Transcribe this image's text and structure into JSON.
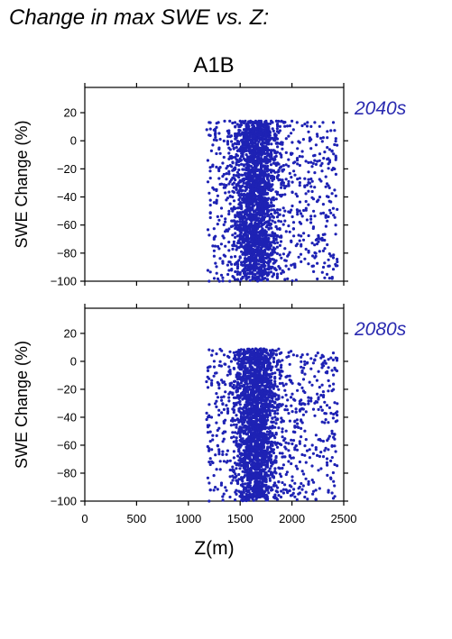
{
  "figure": {
    "title": "Change in max SWE vs. Z:",
    "scenario": "A1B"
  },
  "colors": {
    "points": "#1e22b4",
    "period_label": "#2a2ab0",
    "axis": "#000000"
  },
  "chart_data": [
    {
      "type": "scatter",
      "title": "2040s",
      "xlabel": "",
      "ylabel": "SWE Change (%)",
      "xlim": [
        0,
        2500
      ],
      "ylim": [
        -100,
        38
      ],
      "x_ticks": [
        0,
        500,
        1000,
        1500,
        2000,
        2500
      ],
      "y_ticks": [
        20,
        0,
        -20,
        -40,
        -60,
        -80,
        -100
      ],
      "y_tick_labels": [
        "20",
        "0",
        "−20",
        "−40",
        "−60",
        "−80",
        "−100"
      ],
      "show_x_tick_labels": false,
      "grid": false,
      "series": [
        {
          "color": "#1e22b4",
          "cloud": {
            "x_range": [
              1180,
              2440
            ],
            "y_range": [
              -100,
              14
            ],
            "dense_x": [
              1350,
              1950
            ],
            "peak_x": 1650
          },
          "points": [
            [
              1200,
              13
            ],
            [
              1290,
              13
            ],
            [
              1350,
              14
            ],
            [
              1400,
              14
            ],
            [
              1450,
              13
            ],
            [
              1500,
              14
            ],
            [
              1550,
              14
            ],
            [
              1600,
              14
            ],
            [
              1650,
              14
            ],
            [
              1700,
              14
            ],
            [
              1750,
              14
            ],
            [
              1800,
              14
            ],
            [
              1850,
              14
            ],
            [
              1900,
              14
            ],
            [
              2000,
              14
            ],
            [
              2050,
              13
            ],
            [
              2150,
              13
            ],
            [
              2220,
              13
            ],
            [
              2300,
              13
            ],
            [
              2400,
              13
            ],
            [
              1650,
              -85
            ],
            [
              1800,
              -90
            ],
            [
              2200,
              -82
            ],
            [
              2420,
              -88
            ],
            [
              1200,
              -100
            ],
            [
              1250,
              -98
            ],
            [
              1300,
              -100
            ],
            [
              1400,
              -100
            ],
            [
              1500,
              -100
            ]
          ]
        }
      ]
    },
    {
      "type": "scatter",
      "title": "2080s",
      "xlabel": "Z(m)",
      "ylabel": "SWE Change (%)",
      "xlim": [
        0,
        2500
      ],
      "ylim": [
        -100,
        38
      ],
      "x_ticks": [
        0,
        500,
        1000,
        1500,
        2000,
        2500
      ],
      "x_tick_labels": [
        "0",
        "500",
        "1000",
        "1500",
        "2000",
        "2500"
      ],
      "y_ticks": [
        20,
        0,
        -20,
        -40,
        -60,
        -80,
        -100
      ],
      "y_tick_labels": [
        "20",
        "0",
        "−20",
        "−40",
        "−60",
        "−80",
        "−100"
      ],
      "show_x_tick_labels": true,
      "grid": false,
      "series": [
        {
          "color": "#1e22b4",
          "cloud": {
            "x_range": [
              1180,
              2440
            ],
            "y_range": [
              -100,
              9
            ],
            "dense_x": [
              1350,
              1950
            ],
            "peak_x": 1650
          },
          "points": [
            [
              1200,
              -4
            ],
            [
              1250,
              -4
            ],
            [
              1300,
              -3
            ],
            [
              1350,
              -2
            ],
            [
              1450,
              4
            ],
            [
              1500,
              5
            ],
            [
              1600,
              8
            ],
            [
              1650,
              9
            ],
            [
              1700,
              9
            ],
            [
              1750,
              8
            ],
            [
              1800,
              6
            ],
            [
              1850,
              5
            ],
            [
              1950,
              3
            ],
            [
              2050,
              4
            ],
            [
              2150,
              5
            ],
            [
              2250,
              6
            ],
            [
              2300,
              -3
            ],
            [
              2400,
              6
            ],
            [
              2420,
              -6
            ],
            [
              2400,
              -98
            ],
            [
              2200,
              -95
            ],
            [
              2050,
              -99
            ],
            [
              1200,
              -100
            ]
          ]
        }
      ]
    }
  ]
}
